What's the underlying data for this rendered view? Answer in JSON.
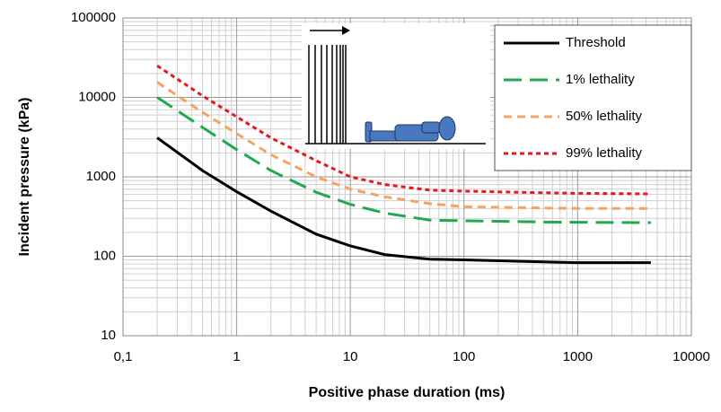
{
  "chart_data": {
    "type": "line",
    "xlabel": "Positive phase duration (ms)",
    "ylabel": "Incident pressure (kPa)",
    "x": [
      0.2,
      0.5,
      1,
      2,
      5,
      10,
      20,
      50,
      100,
      500,
      1000,
      4400
    ],
    "series": [
      {
        "name": "Threshold",
        "color": "#000000",
        "dash": "none",
        "values": [
          3100,
          1200,
          650,
          370,
          190,
          135,
          105,
          92,
          90,
          85,
          83,
          83
        ]
      },
      {
        "name": "1% lethality",
        "color": "#22a84f",
        "dash": "20,9",
        "values": [
          10000,
          4200,
          2200,
          1200,
          640,
          450,
          350,
          285,
          280,
          270,
          268,
          265
        ]
      },
      {
        "name": "50% lethality",
        "color": "#f4a460",
        "dash": "9,6",
        "values": [
          15500,
          6500,
          3500,
          1900,
          1000,
          700,
          560,
          460,
          420,
          405,
          400,
          400
        ]
      },
      {
        "name": "99% lethality",
        "color": "#e3191c",
        "dash": "5,4",
        "values": [
          25000,
          10500,
          5700,
          3100,
          1600,
          1000,
          800,
          680,
          660,
          630,
          620,
          610
        ]
      }
    ],
    "xlim": [
      0.1,
      10000
    ],
    "ylim": [
      10,
      100000
    ],
    "xticks": [
      {
        "value": 0.1,
        "label": "0,1"
      },
      1,
      10,
      100,
      1000,
      10000
    ],
    "yticks": [
      10,
      100,
      1000,
      10000,
      100000
    ],
    "xscale": "log",
    "yscale": "log",
    "grid": true,
    "legend": "upper right"
  }
}
